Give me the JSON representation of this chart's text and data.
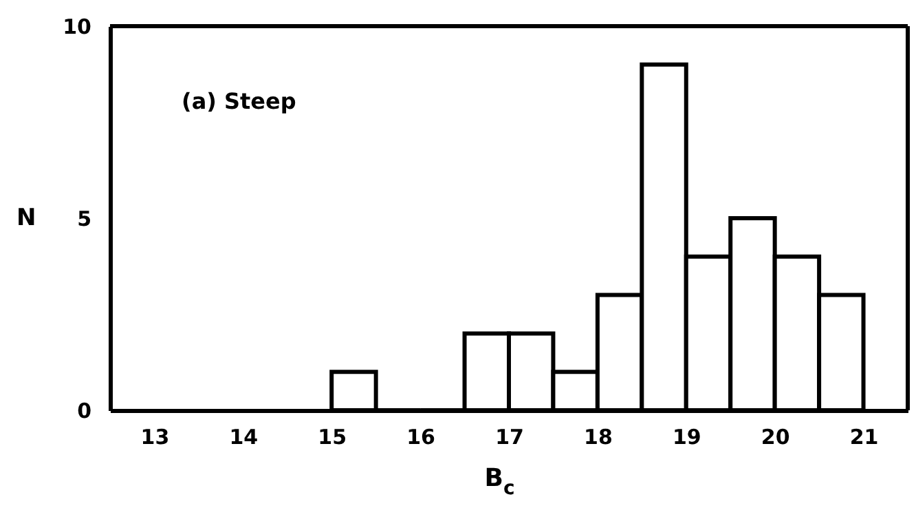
{
  "chart_data": {
    "type": "histogram",
    "bins": [
      15,
      15.5,
      16,
      16.5,
      17,
      17.5,
      18,
      18.5,
      19,
      19.5,
      20,
      20.5,
      21
    ],
    "values": [
      1,
      0,
      0,
      2,
      2,
      1,
      3,
      9,
      4,
      5,
      4,
      3
    ],
    "color": "#ffffff",
    "xlabel": "B$_{c}$",
    "ylabel": "N",
    "annotations": [
      "(a) Steep"
    ],
    "xlim": [
      12.5,
      21.5
    ],
    "xticks": [
      13,
      14,
      15,
      16,
      17,
      18,
      19,
      20,
      21
    ],
    "ylim": [
      0,
      10
    ],
    "yticks": [
      0,
      5,
      10
    ],
    "grid": false
  }
}
